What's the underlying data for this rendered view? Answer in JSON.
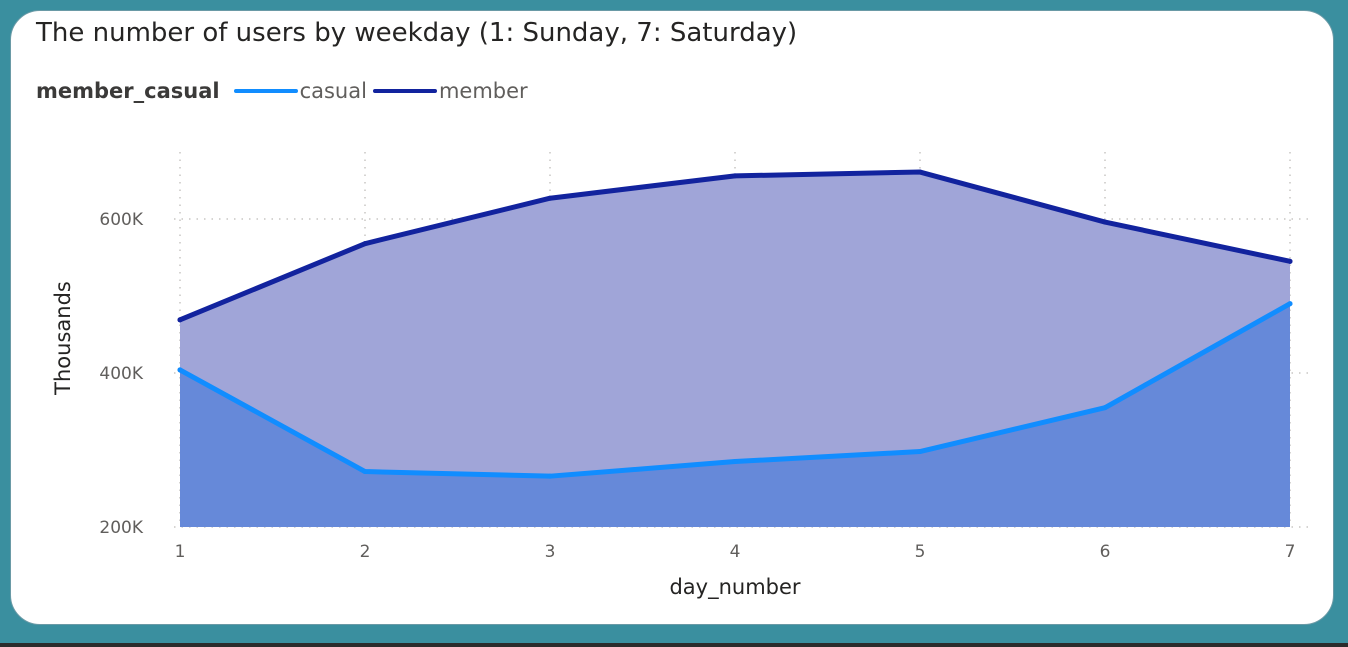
{
  "chart_data": {
    "type": "area",
    "title": "The number of users by weekday (1: Sunday, 7: Saturday)",
    "legend_title": "member_casual",
    "legend_position": "top-left",
    "xlabel": "day_number",
    "ylabel": "Thousands",
    "x": [
      1,
      2,
      3,
      4,
      5,
      6,
      7
    ],
    "x_tick_labels": [
      "1",
      "2",
      "3",
      "4",
      "5",
      "6",
      "7"
    ],
    "y_ticks": [
      200000,
      400000,
      600000
    ],
    "y_tick_labels": [
      "200K",
      "400K",
      "600K"
    ],
    "ylim": [
      200000,
      700000
    ],
    "grid": true,
    "series": [
      {
        "name": "casual",
        "color": "#118dff",
        "fill": "#6689d9",
        "values": [
          404000,
          272000,
          266000,
          285000,
          298000,
          355000,
          490000
        ]
      },
      {
        "name": "member",
        "color": "#12239e",
        "fill": "#a0a5d8",
        "values": [
          469000,
          568000,
          627000,
          656000,
          661000,
          596000,
          545000
        ]
      }
    ]
  }
}
